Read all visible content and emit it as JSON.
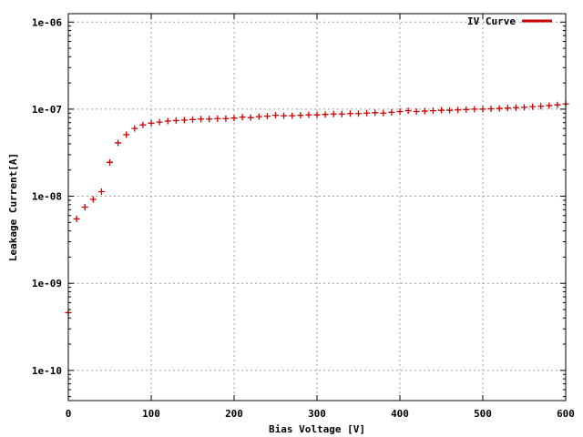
{
  "chart_data": {
    "type": "scatter",
    "xlabel": "Bias Voltage [V]",
    "ylabel": "Leakage Current[A]",
    "xlim": [
      0,
      600
    ],
    "ylim": [
      4.5e-11,
      1.25e-06
    ],
    "y_scale": "log",
    "grid": true,
    "legend_position": "top-right",
    "x_ticks": [
      {
        "value": 0,
        "label": "0"
      },
      {
        "value": 100,
        "label": "100"
      },
      {
        "value": 200,
        "label": "200"
      },
      {
        "value": 300,
        "label": "300"
      },
      {
        "value": 400,
        "label": "400"
      },
      {
        "value": 500,
        "label": "500"
      },
      {
        "value": 600,
        "label": "600"
      }
    ],
    "y_ticks": [
      {
        "value": 1e-10,
        "label": "1e-10"
      },
      {
        "value": 1e-09,
        "label": "1e-09"
      },
      {
        "value": 1e-08,
        "label": "1e-08"
      },
      {
        "value": 1e-07,
        "label": "1e-07"
      },
      {
        "value": 1e-06,
        "label": "1e-06"
      }
    ],
    "series": [
      {
        "name": "IV Curve",
        "color": "#cc0000",
        "marker": "plus",
        "x": [
          0,
          10,
          20,
          30,
          40,
          50,
          60,
          70,
          80,
          90,
          100,
          110,
          120,
          130,
          140,
          150,
          160,
          170,
          180,
          190,
          200,
          210,
          220,
          230,
          240,
          250,
          260,
          270,
          280,
          290,
          300,
          310,
          320,
          330,
          340,
          350,
          360,
          370,
          380,
          390,
          400,
          410,
          420,
          430,
          440,
          450,
          460,
          470,
          480,
          490,
          500,
          510,
          520,
          530,
          540,
          550,
          560,
          570,
          580,
          590,
          600
        ],
        "y": [
          4.6e-10,
          5.5e-09,
          7.5e-09,
          9.2e-09,
          1.13e-08,
          2.45e-08,
          4.1e-08,
          5.1e-08,
          6e-08,
          6.6e-08,
          6.9e-08,
          7.1e-08,
          7.3e-08,
          7.4e-08,
          7.5e-08,
          7.6e-08,
          7.7e-08,
          7.7e-08,
          7.8e-08,
          7.8e-08,
          7.9e-08,
          8.1e-08,
          8e-08,
          8.2e-08,
          8.3e-08,
          8.5e-08,
          8.4e-08,
          8.4e-08,
          8.5e-08,
          8.6e-08,
          8.6e-08,
          8.7e-08,
          8.8e-08,
          8.8e-08,
          8.9e-08,
          8.9e-08,
          9e-08,
          9.1e-08,
          9e-08,
          9.2e-08,
          9.4e-08,
          9.6e-08,
          9.4e-08,
          9.5e-08,
          9.6e-08,
          9.7e-08,
          9.7e-08,
          9.8e-08,
          9.9e-08,
          1e-07,
          1e-07,
          1.01e-07,
          1.02e-07,
          1.03e-07,
          1.04e-07,
          1.05e-07,
          1.07e-07,
          1.08e-07,
          1.1e-07,
          1.12e-07,
          1.15e-07
        ]
      }
    ]
  }
}
